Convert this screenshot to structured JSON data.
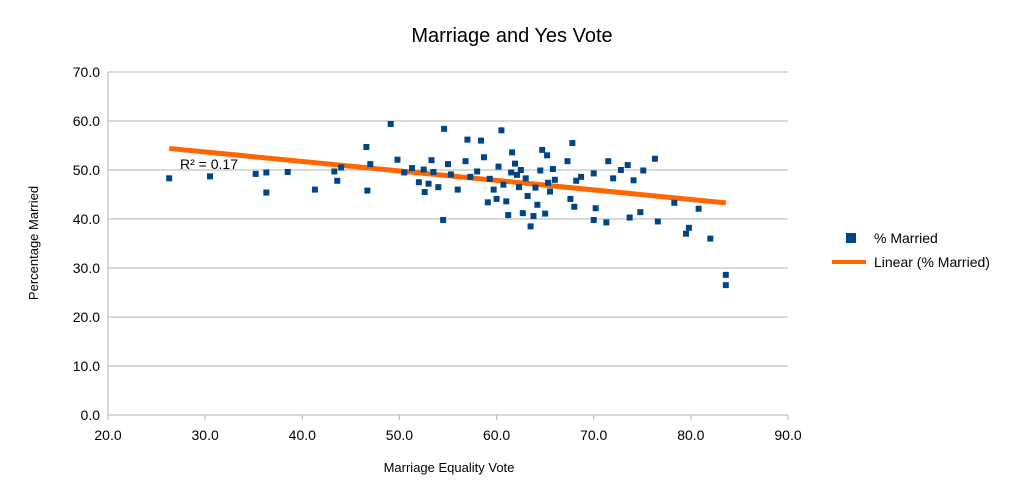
{
  "chart_data": {
    "type": "scatter",
    "title": "Marriage and Yes Vote",
    "xlabel": "Marriage Equality Vote",
    "ylabel": "Percentage Married",
    "xlim": [
      20,
      90
    ],
    "ylim": [
      0,
      70
    ],
    "x_ticks": [
      "20.0",
      "30.0",
      "40.0",
      "50.0",
      "60.0",
      "70.0",
      "80.0",
      "90.0"
    ],
    "y_ticks": [
      "0.0",
      "10.0",
      "20.0",
      "30.0",
      "40.0",
      "50.0",
      "60.0",
      "70.0"
    ],
    "grid": "horizontal",
    "legend_position": "right",
    "colors": {
      "points": "#004586",
      "trendline": "#ff6600",
      "grid": "#b3b3b3"
    },
    "series": [
      {
        "name": "% Married",
        "marker": "square",
        "points": [
          [
            26.3,
            48.3
          ],
          [
            30.5,
            48.7
          ],
          [
            35.2,
            49.2
          ],
          [
            36.3,
            49.5
          ],
          [
            36.3,
            45.4
          ],
          [
            38.5,
            49.6
          ],
          [
            41.3,
            46.0
          ],
          [
            43.3,
            49.7
          ],
          [
            43.6,
            47.8
          ],
          [
            44.0,
            50.5
          ],
          [
            46.6,
            54.7
          ],
          [
            46.7,
            45.8
          ],
          [
            47.0,
            51.2
          ],
          [
            49.1,
            59.4
          ],
          [
            49.8,
            52.1
          ],
          [
            50.5,
            49.5
          ],
          [
            51.3,
            50.4
          ],
          [
            52.0,
            47.5
          ],
          [
            52.5,
            50.1
          ],
          [
            52.6,
            45.5
          ],
          [
            53.0,
            47.2
          ],
          [
            53.3,
            52.0
          ],
          [
            53.5,
            49.6
          ],
          [
            54.0,
            46.5
          ],
          [
            54.5,
            39.8
          ],
          [
            54.6,
            58.4
          ],
          [
            55.0,
            51.2
          ],
          [
            55.3,
            49.1
          ],
          [
            56.0,
            46.0
          ],
          [
            56.8,
            51.8
          ],
          [
            57.0,
            56.2
          ],
          [
            57.3,
            48.6
          ],
          [
            58.0,
            49.7
          ],
          [
            58.4,
            56.0
          ],
          [
            58.7,
            52.6
          ],
          [
            59.1,
            43.4
          ],
          [
            59.3,
            48.2
          ],
          [
            59.7,
            46.0
          ],
          [
            60.0,
            44.1
          ],
          [
            60.2,
            50.7
          ],
          [
            60.5,
            58.1
          ],
          [
            60.7,
            47.0
          ],
          [
            61.0,
            43.6
          ],
          [
            61.2,
            40.8
          ],
          [
            61.5,
            49.5
          ],
          [
            61.6,
            53.6
          ],
          [
            61.9,
            51.3
          ],
          [
            62.1,
            49.0
          ],
          [
            62.3,
            46.5
          ],
          [
            62.5,
            50.0
          ],
          [
            62.7,
            41.2
          ],
          [
            63.0,
            48.3
          ],
          [
            63.2,
            44.7
          ],
          [
            63.5,
            38.5
          ],
          [
            63.8,
            40.6
          ],
          [
            64.0,
            46.4
          ],
          [
            64.2,
            42.9
          ],
          [
            64.5,
            49.9
          ],
          [
            64.7,
            54.1
          ],
          [
            65.0,
            41.1
          ],
          [
            65.2,
            53.0
          ],
          [
            65.3,
            47.4
          ],
          [
            65.5,
            45.6
          ],
          [
            65.8,
            50.2
          ],
          [
            66.0,
            48.0
          ],
          [
            67.3,
            51.8
          ],
          [
            67.6,
            44.1
          ],
          [
            67.8,
            55.5
          ],
          [
            68.0,
            42.5
          ],
          [
            68.2,
            47.8
          ],
          [
            68.7,
            48.6
          ],
          [
            70.0,
            49.3
          ],
          [
            70.0,
            39.8
          ],
          [
            70.2,
            42.2
          ],
          [
            71.3,
            39.3
          ],
          [
            71.5,
            51.8
          ],
          [
            72.0,
            48.3
          ],
          [
            72.8,
            50.0
          ],
          [
            73.5,
            51.0
          ],
          [
            73.7,
            40.3
          ],
          [
            74.1,
            47.9
          ],
          [
            74.8,
            41.4
          ],
          [
            75.1,
            49.9
          ],
          [
            76.3,
            52.3
          ],
          [
            76.6,
            39.5
          ],
          [
            78.3,
            43.3
          ],
          [
            79.5,
            37.0
          ],
          [
            79.8,
            38.2
          ],
          [
            80.8,
            42.1
          ],
          [
            82.0,
            36.0
          ],
          [
            83.6,
            28.6
          ],
          [
            83.6,
            26.5
          ]
        ]
      },
      {
        "name": "Linear (% Married)",
        "type": "trendline",
        "points": [
          [
            26.3,
            54.4
          ],
          [
            83.6,
            43.3
          ]
        ],
        "r_squared_label": "R² = 0.17"
      }
    ]
  }
}
